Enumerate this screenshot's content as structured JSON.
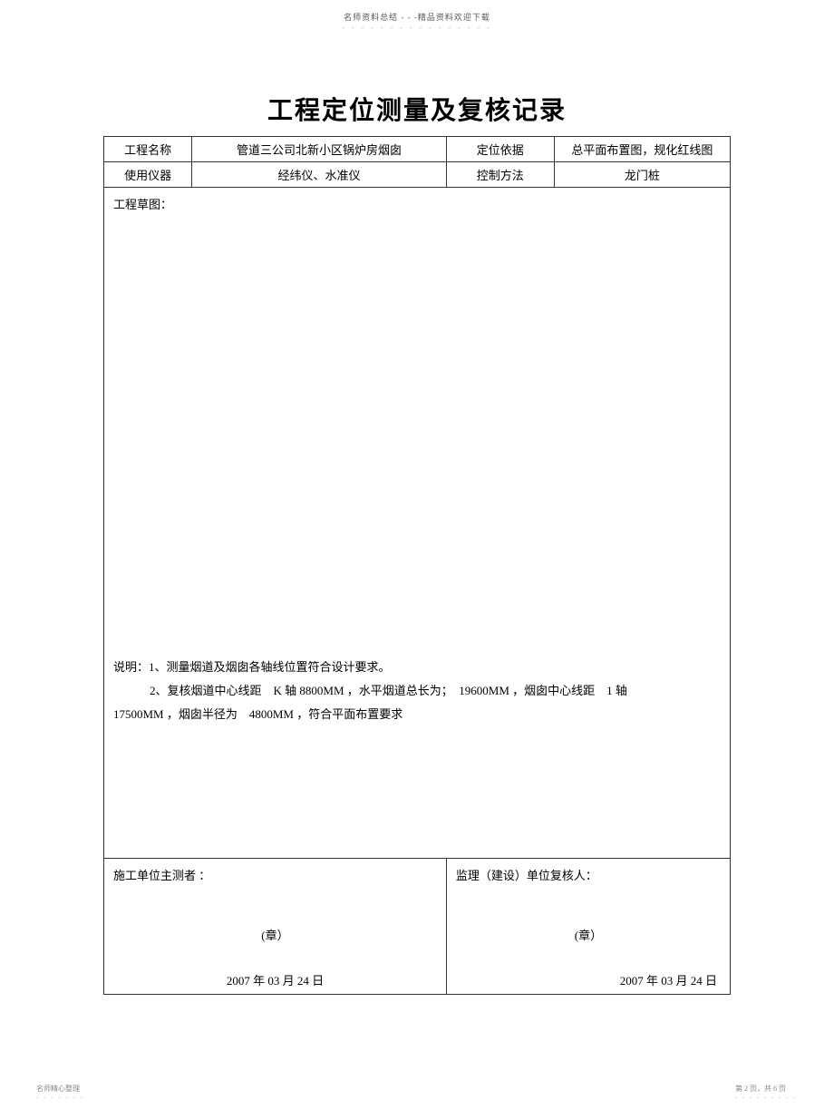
{
  "header": {
    "text": "名师资料总结 - - -精品资料欢迎下载",
    "dots": "- - - - - - - - - - - - - - - -"
  },
  "title": "工程定位测量及复核记录",
  "info_rows": {
    "row1": {
      "label1": "工程名称",
      "value1": "管道三公司北新小区锅炉房烟囱",
      "label2": "定位依据",
      "value2": "总平面布置图，规化红线图"
    },
    "row2": {
      "label1": "使用仪器",
      "value1": "经纬仪、水准仪",
      "label2": "控制方法",
      "value2": "龙门桩"
    }
  },
  "sketch": {
    "label": "工程草图：",
    "description_line1": "说明：1、测量烟道及烟囱各轴线位置符合设计要求。",
    "description_line2": "2、复核烟道中心线距　K 轴 8800MM ，水平烟道总长为；　19600MM ，烟囱中心线距　1 轴",
    "description_line3": "17500MM ，烟囱半径为　4800MM ，符合平面布置要求"
  },
  "signatures": {
    "left": {
      "label": "施工单位主测者 ：",
      "seal": "(章）",
      "date": "2007 年 03 月 24 日"
    },
    "right": {
      "label": "监理（建设）单位复核人：",
      "seal": "(章）",
      "date": "2007 年 03 月 24 日"
    }
  },
  "footer": {
    "left": "名师精心整理",
    "left_dots": "- - - - - - -",
    "right": "第 2 页，共 6 页",
    "right_dots": "- - - - - - - - -"
  }
}
